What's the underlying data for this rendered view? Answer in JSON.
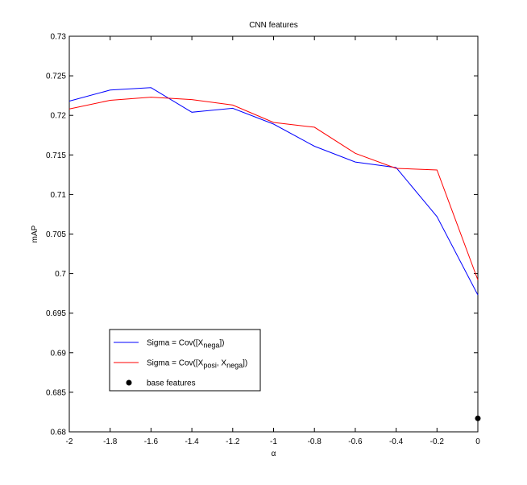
{
  "chart_data": {
    "type": "line",
    "title": "CNN features",
    "xlabel": "α",
    "ylabel": "mAP",
    "xlim": [
      -2,
      0
    ],
    "ylim": [
      0.68,
      0.73
    ],
    "xticks": [
      "-2",
      "-1.8",
      "-1.6",
      "-1.4",
      "-1.2",
      "-1",
      "-0.8",
      "-0.6",
      "-0.4",
      "-0.2",
      "0"
    ],
    "yticks": [
      "0.68",
      "0.685",
      "0.69",
      "0.695",
      "0.7",
      "0.705",
      "0.71",
      "0.715",
      "0.72",
      "0.725",
      "0.73"
    ],
    "x": [
      -2,
      -1.8,
      -1.6,
      -1.4,
      -1.2,
      -1,
      -0.8,
      -0.6,
      -0.4,
      -0.2,
      0
    ],
    "series": [
      {
        "name": "Sigma = Cov([X_nega])",
        "color": "#0000ff",
        "values": [
          0.7218,
          0.7232,
          0.7235,
          0.7204,
          0.7209,
          0.7189,
          0.7161,
          0.7141,
          0.7134,
          0.7072,
          0.6973
        ]
      },
      {
        "name": "Sigma = Cov([X_posi, X_nega])",
        "color": "#ff0000",
        "values": [
          0.7208,
          0.7219,
          0.7223,
          0.722,
          0.7213,
          0.7191,
          0.7185,
          0.7152,
          0.7133,
          0.7131,
          0.6992
        ]
      }
    ],
    "points": [
      {
        "name": "base features",
        "x": 0,
        "y": 0.6817,
        "color": "#000000"
      }
    ],
    "legend": {
      "position": "lower-left",
      "entries": [
        {
          "prefix": "Sigma = Cov([X",
          "sub1": "nega",
          "suffix": "])"
        },
        {
          "prefix": "Sigma = Cov([X",
          "sub1": "posi",
          "mid": ", X",
          "sub2": "nega",
          "suffix": "])"
        },
        {
          "text": "base features"
        }
      ]
    },
    "grid": false
  }
}
